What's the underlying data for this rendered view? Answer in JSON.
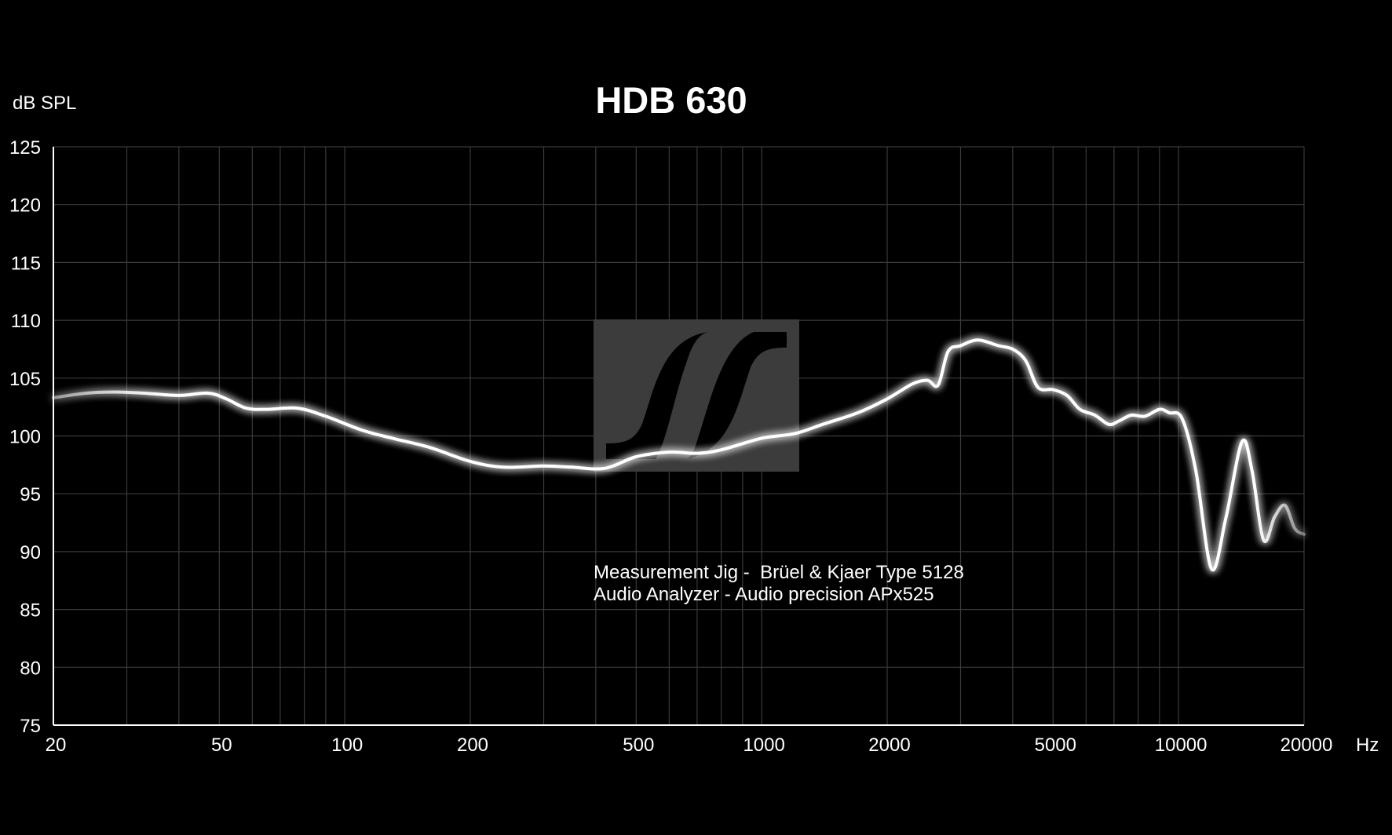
{
  "chart_data": {
    "type": "line",
    "title": "HDB 630",
    "ylabel": "dB SPL",
    "xlabel": "Hz",
    "xscale": "log",
    "xlim": [
      20,
      20000
    ],
    "ylim": [
      75,
      125
    ],
    "x_ticks": [
      20,
      50,
      100,
      200,
      500,
      1000,
      2000,
      5000,
      10000,
      20000
    ],
    "x_tick_labels": [
      "20",
      "50",
      "100",
      "200",
      "500",
      "1000",
      "2000",
      "5000",
      "10000",
      "20000"
    ],
    "y_ticks": [
      75,
      80,
      85,
      90,
      95,
      100,
      105,
      110,
      115,
      120,
      125
    ],
    "y_tick_labels": [
      "75",
      "80",
      "85",
      "90",
      "95",
      "100",
      "105",
      "110",
      "115",
      "120",
      "125"
    ],
    "grid": true,
    "line_color": "#ffffff",
    "grid_color": "#3a3a3a",
    "annotations": [
      "Measurement Jig -  Brüel & Kjaer Type 5128",
      "Audio Analyzer - Audio precision APx525"
    ],
    "logo": "sennheiser-logo",
    "series": [
      {
        "x": [
          20,
          24,
          28,
          33,
          40,
          47,
          52,
          58,
          65,
          77,
          90,
          110,
          130,
          160,
          200,
          240,
          300,
          350,
          420,
          500,
          600,
          700,
          800,
          1000,
          1200,
          1400,
          1700,
          2000,
          2300,
          2500,
          2650,
          2800,
          3000,
          3300,
          3700,
          4000,
          4300,
          4600,
          5000,
          5400,
          5800,
          6300,
          6800,
          7200,
          7700,
          8300,
          9000,
          9500,
          10200,
          11000,
          12000,
          13000,
          14200,
          15000,
          16000,
          17000,
          18000,
          19000,
          20000
        ],
        "y": [
          103.3,
          103.7,
          103.8,
          103.7,
          103.5,
          103.7,
          103.2,
          102.4,
          102.3,
          102.4,
          101.7,
          100.5,
          99.8,
          99.0,
          97.8,
          97.3,
          97.4,
          97.3,
          97.2,
          98.2,
          98.6,
          98.5,
          98.8,
          99.8,
          100.2,
          101.0,
          102.0,
          103.2,
          104.5,
          104.8,
          104.4,
          107.3,
          107.8,
          108.3,
          107.8,
          107.5,
          106.5,
          104.2,
          104.0,
          103.5,
          102.3,
          101.8,
          101.0,
          101.3,
          101.8,
          101.7,
          102.3,
          102.0,
          101.5,
          97.0,
          88.5,
          93.0,
          99.5,
          97.0,
          91.0,
          93.0,
          94.0,
          92.0,
          91.5
        ]
      }
    ]
  }
}
